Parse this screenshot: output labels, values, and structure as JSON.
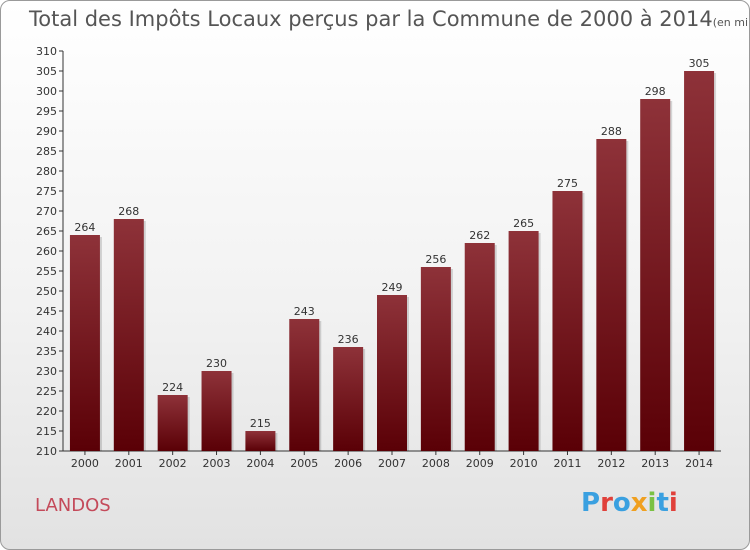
{
  "header": {
    "title": "Total des Impôts Locaux perçus par la Commune de 2000 à 2014",
    "unit": "(en milliers d'€)"
  },
  "footer": {
    "commune": "LANDOS",
    "logo": {
      "p": "P",
      "r": "r",
      "o": "o",
      "x": "x",
      "i1": "i",
      "t": "t",
      "i2": "i"
    }
  },
  "colors": {
    "bar_dark": "#5a0006",
    "bar_light": "#8e3239",
    "commune": "#c44a5a"
  },
  "chart_data": {
    "type": "bar",
    "title": "Total des Impôts Locaux perçus par la Commune de 2000 à 2014",
    "xlabel": "",
    "ylabel": "",
    "categories": [
      "2000",
      "2001",
      "2002",
      "2003",
      "2004",
      "2005",
      "2006",
      "2007",
      "2008",
      "2009",
      "2010",
      "2011",
      "2012",
      "2013",
      "2014"
    ],
    "values": [
      264,
      268,
      224,
      230,
      215,
      243,
      236,
      249,
      256,
      262,
      265,
      275,
      288,
      298,
      305
    ],
    "ylim": [
      210,
      310
    ],
    "yticks": [
      210,
      215,
      220,
      225,
      230,
      235,
      240,
      245,
      250,
      255,
      260,
      265,
      270,
      275,
      280,
      285,
      290,
      295,
      300,
      305,
      310
    ],
    "grid": false
  }
}
